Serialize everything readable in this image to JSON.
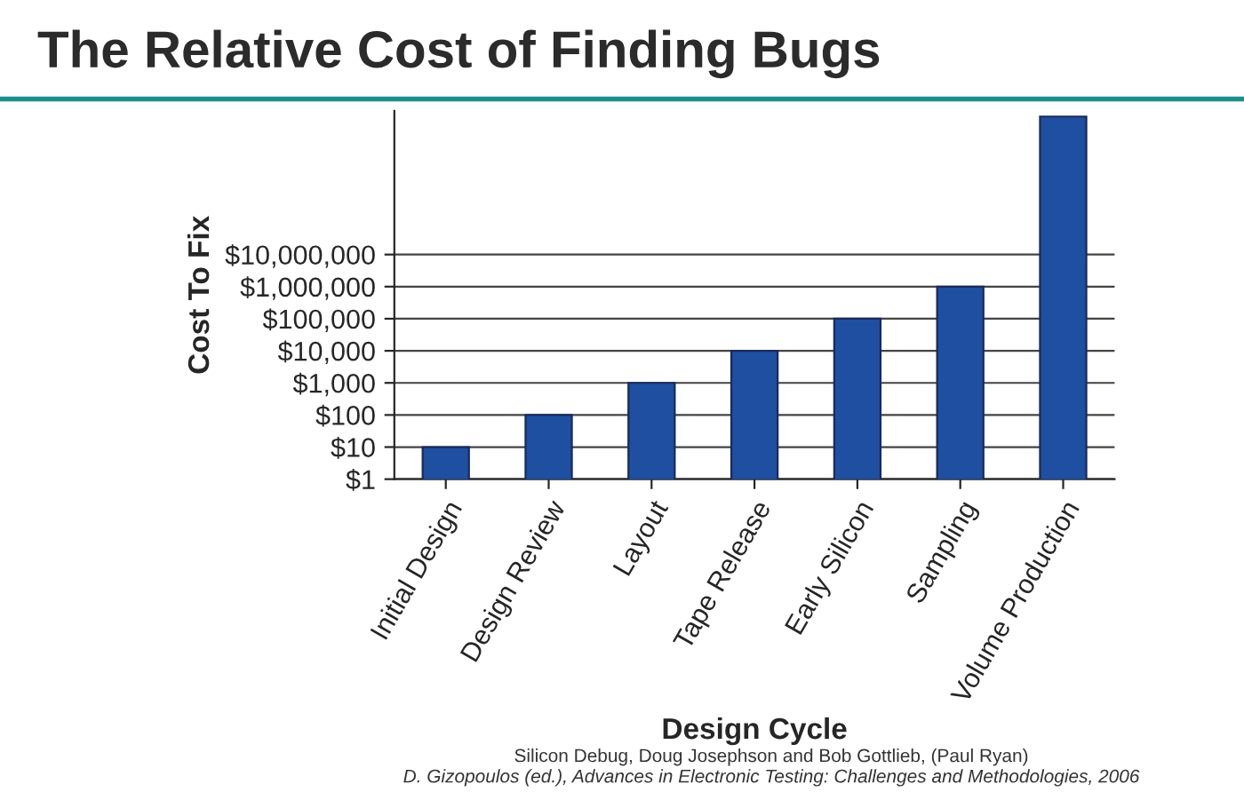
{
  "chart_data": {
    "type": "bar",
    "title": "The Relative Cost of Finding Bugs",
    "xlabel": "Design Cycle",
    "ylabel": "Cost To Fix",
    "categories": [
      "Initial Design",
      "Design Review",
      "Layout",
      "Tape Release",
      "Early Silicon",
      "Sampling",
      "Volume Production"
    ],
    "values": [
      10,
      100,
      1000,
      10000,
      100000,
      1000000,
      200000000000
    ],
    "color": "#1f4fa0",
    "log": true,
    "ylim": [
      1,
      300000000000
    ],
    "yticks": [
      {
        "value": 1,
        "label": "$1"
      },
      {
        "value": 10,
        "label": "$10"
      },
      {
        "value": 100,
        "label": "$100"
      },
      {
        "value": 1000,
        "label": "$1,000"
      },
      {
        "value": 10000,
        "label": "$10,000"
      },
      {
        "value": 100000,
        "label": "$100,000"
      },
      {
        "value": 1000000,
        "label": "$1,000,000"
      },
      {
        "value": 10000000,
        "label": "$10,000,000"
      }
    ],
    "grid": "y",
    "annotations": [
      "Silicon Debug, Doug Josephson and Bob Gottlieb, (Paul Ryan)",
      "D. Gizopoulos (ed.), Advances in Electronic Testing: Challenges and Methodologies, 2006"
    ]
  }
}
